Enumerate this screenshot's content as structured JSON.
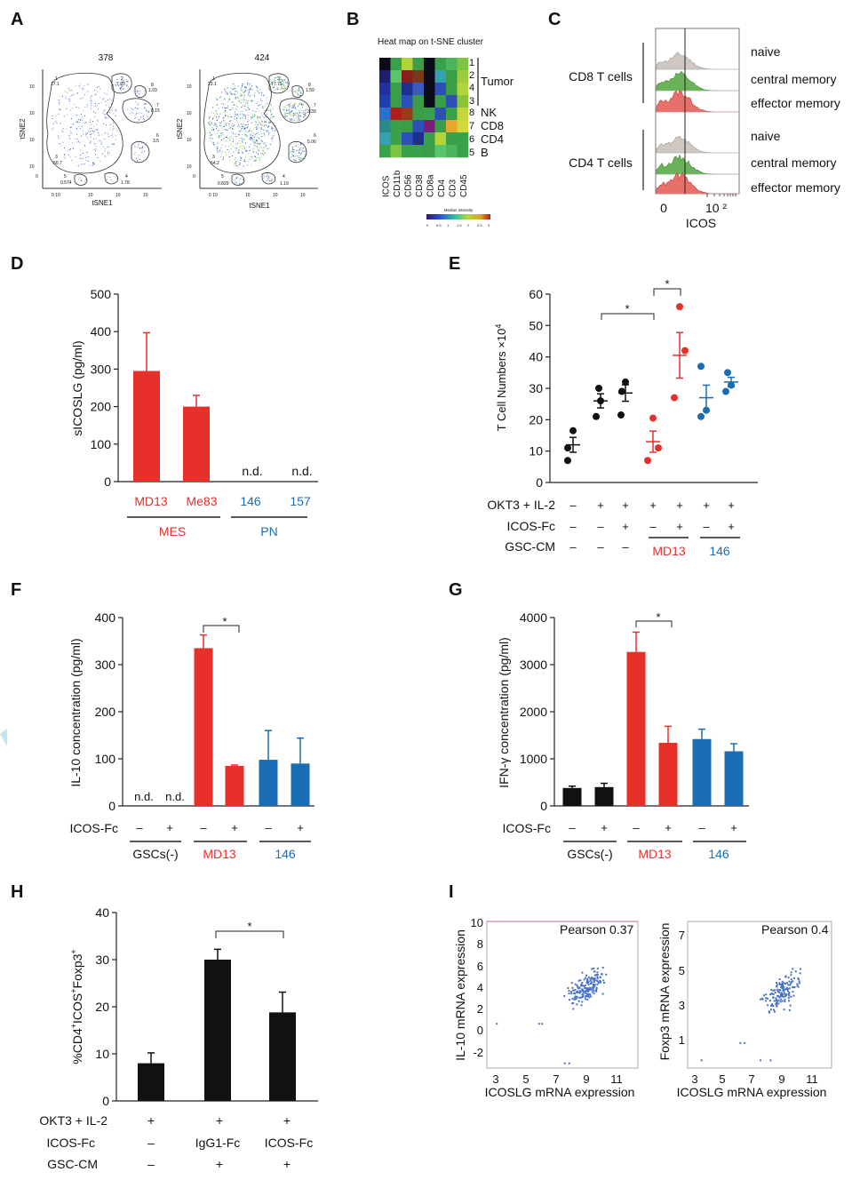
{
  "panel_letters": {
    "a": "A",
    "b": "B",
    "c": "C",
    "d": "D",
    "e": "E",
    "f": "F",
    "g": "G",
    "h": "H",
    "i": "I"
  },
  "panel_a": {
    "plot1": {
      "title": "378",
      "xlabel": "tSNE1",
      "ylabel": "tSNE2",
      "yticks": [
        "10",
        "10",
        "10",
        "10",
        "0"
      ],
      "xticks": [
        "0 10",
        "10",
        "10",
        "10"
      ],
      "clusters": [
        "1",
        "2",
        "8",
        "7",
        "6",
        "3",
        "5",
        "4"
      ],
      "values": [
        "17.1",
        "7.93",
        "1.03",
        "8.15",
        "3.5",
        "50.7",
        "0.574",
        "1.78"
      ]
    },
    "plot2": {
      "title": "424",
      "xlabel": "tSNE1",
      "ylabel": "tSNE2",
      "yticks": [
        "10",
        "10",
        "10",
        "10",
        "0"
      ],
      "xticks": [
        "0 10",
        "10",
        "10",
        "10"
      ],
      "clusters": [
        "1",
        "2",
        "8",
        "7",
        "6",
        "3",
        "5",
        "4"
      ],
      "values": [
        "23.1",
        "7.75",
        "1.59",
        "3.39",
        "5.06",
        "54.2",
        "0.829",
        "1.19"
      ]
    }
  },
  "panel_b": {
    "title": "Heat map on t-SNE cluster",
    "rows": [
      "1",
      "2",
      "4",
      "3",
      "8",
      "7",
      "6",
      "5"
    ],
    "row_labels": [
      "Tumor",
      "NK",
      "CD8",
      "CD4",
      "B"
    ],
    "markers": [
      "ICOS",
      "CD11b",
      "CD56",
      "CD38",
      "CD8a",
      "CD4",
      "CD3",
      "CD45"
    ],
    "legend_title": "Median intensity",
    "legend_ticks": [
      "0",
      "0.5",
      "1",
      "1.5",
      "2",
      "2.5",
      "3"
    ]
  },
  "panel_c": {
    "groups": [
      "CD8 T cells",
      "CD4 T cells"
    ],
    "labels": [
      "naive",
      "central memory",
      "effector memory",
      "naive",
      "central memory",
      "effector memory"
    ],
    "xticks": [
      "0",
      "10 ²"
    ],
    "xlabel": "ICOS"
  },
  "panel_d": {
    "ylabel": "sICOSLG (pg/ml)",
    "yticks": [
      "500",
      "400",
      "300",
      "200",
      "100",
      "0"
    ],
    "categories": [
      "MD13",
      "Me83",
      "146",
      "157"
    ],
    "nd": "n.d.",
    "groups": [
      "MES",
      "PN"
    ]
  },
  "panel_e": {
    "ylabel": "T Cell Numbers  ×10",
    "ylabel_exp": "4",
    "yticks": [
      "60",
      "50",
      "40",
      "30",
      "20",
      "10",
      "0"
    ],
    "star": "*",
    "row_labels": [
      "OKT3 + IL-2",
      "ICOS-Fc",
      "GSC-CM"
    ],
    "okt3": [
      "–",
      "+",
      "+",
      "+",
      "+",
      "+",
      "+"
    ],
    "icos": [
      "–",
      "–",
      "+",
      "–",
      "+",
      "–",
      "+"
    ],
    "gsc": [
      "–",
      "–",
      "–"
    ],
    "groups": [
      "MD13",
      "146"
    ]
  },
  "panel_f": {
    "ylabel": "IL-10 concentration (pg/ml)",
    "yticks": [
      "400",
      "300",
      "200",
      "100",
      "0"
    ],
    "nd": "n.d.",
    "star": "*",
    "row_label": "ICOS-Fc",
    "icos": [
      "–",
      "+",
      "–",
      "+",
      "–",
      "+"
    ],
    "groups": [
      "GSCs(-)",
      "MD13",
      "146"
    ]
  },
  "panel_g": {
    "ylabel": "IFN-γ concentration (pg/ml)",
    "yticks": [
      "4000",
      "3000",
      "2000",
      "1000",
      "0"
    ],
    "star": "*",
    "row_label": "ICOS-Fc",
    "icos": [
      "–",
      "+",
      "–",
      "+",
      "–",
      "+"
    ],
    "groups": [
      "GSCs(-)",
      "MD13",
      "146"
    ]
  },
  "panel_h": {
    "ylabel": "%CD4",
    "ylabel_rest": "ICOS",
    "ylabel_end": "Foxp3",
    "sup": "+",
    "yticks": [
      "40",
      "30",
      "20",
      "10",
      "0"
    ],
    "star": "*",
    "row_labels": [
      "OKT3 + IL-2",
      "ICOS-Fc",
      "GSC-CM"
    ],
    "okt3": [
      "+",
      "+",
      "+"
    ],
    "icos": [
      "–",
      "IgG1-Fc",
      "ICOS-Fc"
    ],
    "gsc": [
      "–",
      "+",
      "+"
    ]
  },
  "panel_i": {
    "left": {
      "pearson": "Pearson 0.37",
      "ylabel": "IL-10 mRNA expression",
      "xlabel": "ICOSLG mRNA expression",
      "yticks": [
        "10",
        "8",
        "6",
        "4",
        "2",
        "0",
        "-2"
      ],
      "xticks": [
        "3",
        "5",
        "7",
        "9",
        "11"
      ]
    },
    "right": {
      "pearson": "Pearson 0.4",
      "ylabel": "Foxp3 mRNA expression",
      "xlabel": "ICOSLG mRNA expression",
      "yticks": [
        "7",
        "5",
        "3",
        "1"
      ],
      "xticks": [
        "3",
        "5",
        "7",
        "9",
        "11"
      ]
    }
  },
  "chart_data": [
    {
      "type": "bar",
      "panel": "D",
      "categories": [
        "MD13",
        "Me83",
        "146",
        "157"
      ],
      "values": [
        295,
        200,
        0,
        0
      ],
      "errors": [
        102,
        30,
        0,
        0
      ],
      "ylim": [
        0,
        500
      ],
      "ylabel": "sICOSLG (pg/ml)",
      "colors": [
        "#e8302b",
        "#e8302b",
        "#1a6db3",
        "#1a6db3"
      ]
    },
    {
      "type": "scatter",
      "panel": "E",
      "ylim": [
        0,
        60
      ],
      "ylabel": "T Cell Numbers  ×10",
      "groups": [
        {
          "points": [
            16.5,
            11,
            7
          ],
          "mean": 12,
          "color": "#111111"
        },
        {
          "points": [
            30,
            26,
            21
          ],
          "mean": 26,
          "color": "#111111"
        },
        {
          "points": [
            32,
            29,
            21.5
          ],
          "mean": 28.5,
          "color": "#111111"
        },
        {
          "points": [
            20.5,
            11,
            7
          ],
          "mean": 13,
          "color": "#e8302b"
        },
        {
          "points": [
            56,
            42,
            27
          ],
          "mean": 40.5,
          "color": "#e8302b"
        },
        {
          "points": [
            37,
            23,
            21
          ],
          "mean": 27,
          "color": "#1a6db3"
        },
        {
          "points": [
            35,
            31,
            29
          ],
          "mean": 32,
          "color": "#1a6db3"
        }
      ]
    },
    {
      "type": "bar",
      "panel": "F",
      "values": [
        0,
        0,
        335,
        85,
        98,
        90
      ],
      "errors": [
        0,
        0,
        28,
        2,
        62,
        54
      ],
      "ylim": [
        0,
        400
      ],
      "ylabel": "IL-10 concentration (pg/ml)",
      "colors": [
        "#111111",
        "#111111",
        "#e8302b",
        "#e8302b",
        "#1a6db3",
        "#1a6db3"
      ]
    },
    {
      "type": "bar",
      "panel": "G",
      "values": [
        380,
        400,
        3270,
        1340,
        1420,
        1160
      ],
      "errors": [
        40,
        80,
        420,
        350,
        210,
        160
      ],
      "ylim": [
        0,
        4000
      ],
      "ylabel": "IFN-γ concentration (pg/ml)",
      "colors": [
        "#111111",
        "#111111",
        "#e8302b",
        "#e8302b",
        "#1a6db3",
        "#1a6db3"
      ]
    },
    {
      "type": "bar",
      "panel": "H",
      "values": [
        8,
        30,
        18.8
      ],
      "errors": [
        2.2,
        2.2,
        4.3
      ],
      "ylim": [
        0,
        40
      ],
      "colors": [
        "#111111",
        "#111111",
        "#111111"
      ]
    },
    {
      "type": "scatter",
      "panel": "I-left",
      "xlim": [
        2.5,
        12.5
      ],
      "ylim": [
        -3,
        10
      ],
      "color": "#4a72c4"
    },
    {
      "type": "scatter",
      "panel": "I-right",
      "xlim": [
        2.5,
        12.5
      ],
      "ylim": [
        -0.5,
        8
      ],
      "color": "#4a72c4"
    }
  ]
}
